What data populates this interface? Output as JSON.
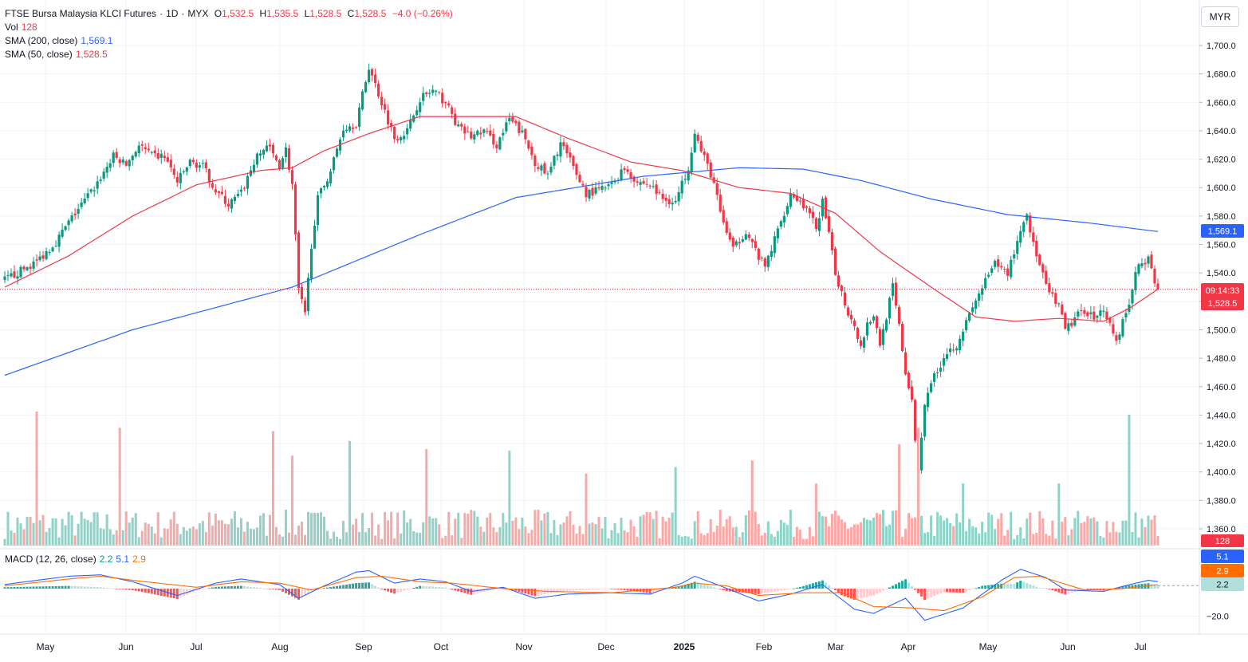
{
  "symbol": {
    "name": "FTSE Bursa Malaysia KLCI Futures",
    "interval": "1D",
    "exchange": "MYX",
    "open_label": "O",
    "open": "1,532.5",
    "high_label": "H",
    "high": "1,535.5",
    "low_label": "L",
    "low": "1,528.5",
    "close_label": "C",
    "close": "1,528.5",
    "change": "−4.0 (−0.26%)"
  },
  "legend": {
    "vol_label": "Vol",
    "vol_value": "128",
    "sma200_label": "SMA (200, close)",
    "sma200_value": "1,569.1",
    "sma50_label": "SMA (50, close)",
    "sma50_value": "1,528.5",
    "macd_label": "MACD (12, 26, close)",
    "macd_hist": "2.2",
    "macd_line": "5.1",
    "macd_signal": "2.9"
  },
  "currency": "MYR",
  "price_badges": {
    "sma200": "1,569.1",
    "countdown": "09:14:33",
    "last": "1,528.5",
    "volume": "128",
    "macd_line": "5.1",
    "macd_signal": "2.9",
    "macd_hist": "2.2"
  },
  "colors": {
    "up": "#089981",
    "down": "#f23645",
    "vol_up": "#8fd3c8",
    "vol_down": "#f7a9a7",
    "sma200": "#2962ff",
    "sma50": "#f23645",
    "macd": "#2962ff",
    "signal": "#ff6d00",
    "hist_up_strong": "#26a69a",
    "hist_up_weak": "#b2dfdb",
    "hist_down_strong": "#ff5252",
    "hist_down_weak": "#ffcdd2",
    "grid": "#f0f3fa"
  },
  "chart_data": {
    "type": "candlestick",
    "price_axis": {
      "ticks": [
        "1,700.0",
        "1,680.0",
        "1,660.0",
        "1,640.0",
        "1,620.0",
        "1,600.0",
        "1,580.0",
        "1,560.0",
        "1,540.0",
        "1,520.0",
        "1,500.0",
        "1,480.0",
        "1,460.0",
        "1,440.0",
        "1,420.0",
        "1,400.0",
        "1,380.0",
        "1,360.0"
      ],
      "range": [
        1355,
        1715
      ]
    },
    "macd_axis": {
      "ticks": [
        "−20.0"
      ],
      "range": [
        -27,
        27
      ]
    },
    "time_axis": [
      "May",
      "Jun",
      "Jul",
      "Aug",
      "Sep",
      "Oct",
      "Nov",
      "Dec",
      "2025",
      "Feb",
      "Mar",
      "Apr",
      "May",
      "Jun",
      "Jul"
    ],
    "close_path": [
      [
        0,
        1535
      ],
      [
        10,
        1548
      ],
      [
        16,
        1562
      ],
      [
        22,
        1582
      ],
      [
        28,
        1600
      ],
      [
        34,
        1622
      ],
      [
        38,
        1616
      ],
      [
        42,
        1630
      ],
      [
        46,
        1622
      ],
      [
        50,
        1622
      ],
      [
        54,
        1604
      ],
      [
        58,
        1618
      ],
      [
        62,
        1615
      ],
      [
        66,
        1598
      ],
      [
        70,
        1588
      ],
      [
        74,
        1596
      ],
      [
        78,
        1618
      ],
      [
        82,
        1630
      ],
      [
        86,
        1616
      ],
      [
        88,
        1627
      ],
      [
        90,
        1602
      ],
      [
        92,
        1528
      ],
      [
        94,
        1510
      ],
      [
        96,
        1560
      ],
      [
        98,
        1592
      ],
      [
        102,
        1612
      ],
      [
        106,
        1642
      ],
      [
        110,
        1645
      ],
      [
        114,
        1685
      ],
      [
        118,
        1660
      ],
      [
        122,
        1635
      ],
      [
        126,
        1640
      ],
      [
        130,
        1663
      ],
      [
        134,
        1668
      ],
      [
        138,
        1660
      ],
      [
        142,
        1642
      ],
      [
        146,
        1636
      ],
      [
        150,
        1640
      ],
      [
        154,
        1630
      ],
      [
        158,
        1648
      ],
      [
        162,
        1638
      ],
      [
        166,
        1618
      ],
      [
        170,
        1608
      ],
      [
        174,
        1632
      ],
      [
        178,
        1614
      ],
      [
        182,
        1596
      ],
      [
        186,
        1598
      ],
      [
        190,
        1602
      ],
      [
        194,
        1614
      ],
      [
        198,
        1604
      ],
      [
        202,
        1602
      ],
      [
        206,
        1592
      ],
      [
        210,
        1590
      ],
      [
        214,
        1615
      ],
      [
        216,
        1640
      ],
      [
        218,
        1625
      ],
      [
        220,
        1616
      ],
      [
        222,
        1603
      ],
      [
        224,
        1582
      ],
      [
        228,
        1556
      ],
      [
        232,
        1570
      ],
      [
        236,
        1551
      ],
      [
        238,
        1544
      ],
      [
        242,
        1570
      ],
      [
        246,
        1596
      ],
      [
        250,
        1588
      ],
      [
        254,
        1572
      ],
      [
        256,
        1590
      ],
      [
        258,
        1566
      ],
      [
        260,
        1540
      ],
      [
        264,
        1512
      ],
      [
        266,
        1504
      ],
      [
        268,
        1488
      ],
      [
        270,
        1505
      ],
      [
        272,
        1510
      ],
      [
        274,
        1490
      ],
      [
        276,
        1510
      ],
      [
        278,
        1530
      ],
      [
        280,
        1502
      ],
      [
        282,
        1470
      ],
      [
        284,
        1448
      ],
      [
        286,
        1400
      ],
      [
        288,
        1450
      ],
      [
        290,
        1464
      ],
      [
        292,
        1470
      ],
      [
        294,
        1482
      ],
      [
        298,
        1490
      ],
      [
        302,
        1510
      ],
      [
        306,
        1530
      ],
      [
        310,
        1546
      ],
      [
        314,
        1540
      ],
      [
        318,
        1570
      ],
      [
        320,
        1582
      ],
      [
        322,
        1560
      ],
      [
        326,
        1530
      ],
      [
        330,
        1516
      ],
      [
        332,
        1500
      ],
      [
        336,
        1510
      ],
      [
        338,
        1514
      ],
      [
        342,
        1508
      ],
      [
        344,
        1516
      ],
      [
        348,
        1492
      ],
      [
        350,
        1506
      ],
      [
        352,
        1518
      ],
      [
        354,
        1540
      ],
      [
        356,
        1548
      ],
      [
        358,
        1550
      ],
      [
        360,
        1532
      ],
      [
        361,
        1528.5
      ]
    ],
    "sma50_path": [
      [
        0,
        1530
      ],
      [
        20,
        1552
      ],
      [
        40,
        1580
      ],
      [
        60,
        1602
      ],
      [
        80,
        1612
      ],
      [
        90,
        1614
      ],
      [
        100,
        1626
      ],
      [
        114,
        1638
      ],
      [
        130,
        1650
      ],
      [
        150,
        1650
      ],
      [
        160,
        1650
      ],
      [
        176,
        1635
      ],
      [
        196,
        1618
      ],
      [
        212,
        1612
      ],
      [
        230,
        1600
      ],
      [
        246,
        1596
      ],
      [
        260,
        1582
      ],
      [
        274,
        1555
      ],
      [
        290,
        1530
      ],
      [
        304,
        1509
      ],
      [
        316,
        1506
      ],
      [
        330,
        1508
      ],
      [
        344,
        1506
      ],
      [
        352,
        1515
      ],
      [
        361,
        1528.5
      ]
    ],
    "sma200_path": [
      [
        0,
        1468
      ],
      [
        40,
        1500
      ],
      [
        90,
        1530
      ],
      [
        130,
        1567
      ],
      [
        160,
        1593
      ],
      [
        200,
        1608
      ],
      [
        230,
        1614
      ],
      [
        250,
        1613
      ],
      [
        268,
        1605
      ],
      [
        290,
        1592
      ],
      [
        314,
        1581
      ],
      [
        340,
        1575
      ],
      [
        361,
        1569.1
      ]
    ],
    "volume_spikes": [
      [
        10,
        82
      ],
      [
        36,
        72
      ],
      [
        84,
        70
      ],
      [
        90,
        55
      ],
      [
        108,
        64
      ],
      [
        132,
        59
      ],
      [
        158,
        58
      ],
      [
        182,
        44
      ],
      [
        210,
        48
      ],
      [
        234,
        52
      ],
      [
        254,
        38
      ],
      [
        280,
        62
      ],
      [
        286,
        72
      ],
      [
        300,
        38
      ],
      [
        330,
        38
      ],
      [
        352,
        80
      ]
    ],
    "macd_path": [
      [
        0,
        3
      ],
      [
        20,
        9
      ],
      [
        30,
        10
      ],
      [
        40,
        5
      ],
      [
        54,
        -5
      ],
      [
        66,
        4
      ],
      [
        74,
        7
      ],
      [
        86,
        3
      ],
      [
        92,
        -7
      ],
      [
        100,
        2
      ],
      [
        110,
        12
      ],
      [
        114,
        13
      ],
      [
        122,
        4
      ],
      [
        130,
        7
      ],
      [
        138,
        5
      ],
      [
        146,
        -2
      ],
      [
        156,
        1
      ],
      [
        166,
        -7
      ],
      [
        176,
        -4
      ],
      [
        190,
        -3
      ],
      [
        202,
        -4
      ],
      [
        212,
        4
      ],
      [
        216,
        9
      ],
      [
        224,
        2
      ],
      [
        236,
        -9
      ],
      [
        246,
        -4
      ],
      [
        256,
        3
      ],
      [
        266,
        -15
      ],
      [
        272,
        -18
      ],
      [
        282,
        -7
      ],
      [
        288,
        -23
      ],
      [
        300,
        -14
      ],
      [
        312,
        6
      ],
      [
        318,
        14
      ],
      [
        326,
        8
      ],
      [
        332,
        -1
      ],
      [
        344,
        -2
      ],
      [
        354,
        4
      ],
      [
        358,
        6
      ],
      [
        361,
        5.1
      ]
    ],
    "signal_path": [
      [
        0,
        2
      ],
      [
        20,
        7
      ],
      [
        30,
        9
      ],
      [
        44,
        5
      ],
      [
        60,
        1
      ],
      [
        74,
        5
      ],
      [
        86,
        4
      ],
      [
        96,
        -1
      ],
      [
        110,
        8
      ],
      [
        118,
        9
      ],
      [
        130,
        5
      ],
      [
        140,
        4
      ],
      [
        156,
        0
      ],
      [
        170,
        -2
      ],
      [
        190,
        -3
      ],
      [
        210,
        1
      ],
      [
        216,
        4
      ],
      [
        226,
        2
      ],
      [
        236,
        -5
      ],
      [
        250,
        -3
      ],
      [
        262,
        -3
      ],
      [
        272,
        -13
      ],
      [
        284,
        -14
      ],
      [
        294,
        -16
      ],
      [
        306,
        -6
      ],
      [
        316,
        8
      ],
      [
        324,
        9
      ],
      [
        338,
        -1
      ],
      [
        350,
        0
      ],
      [
        361,
        2.9
      ]
    ]
  }
}
